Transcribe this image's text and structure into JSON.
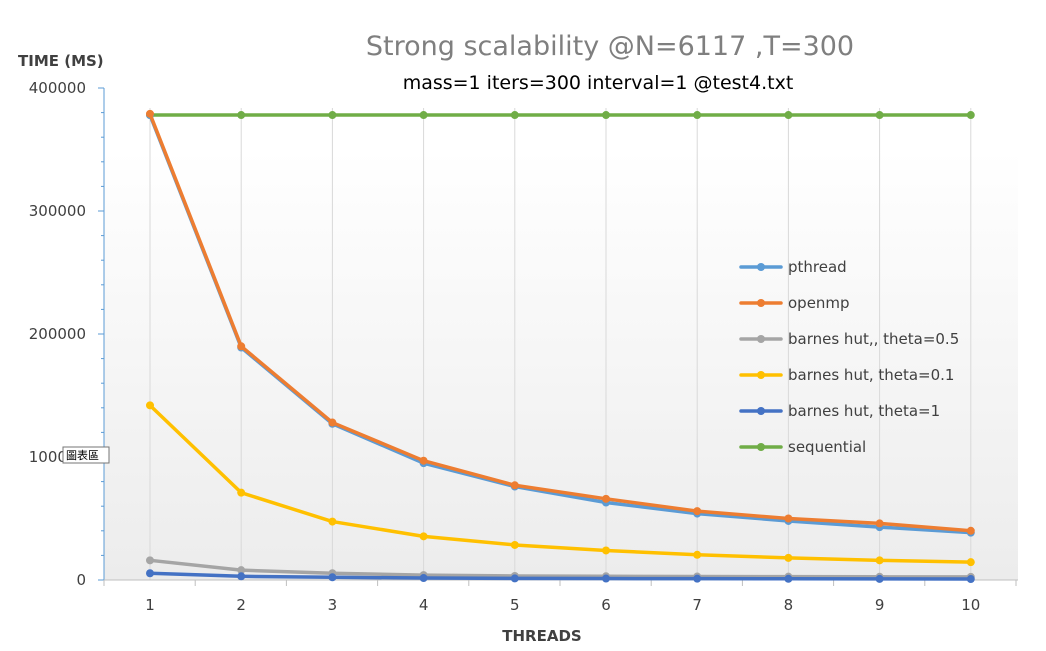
{
  "chart_data": {
    "type": "line",
    "title": "Strong scalability @N=6117 ,T=300",
    "subtitle": "mass=1 iters=300 interval=1 @test4.txt",
    "xlabel": "THREADS",
    "ylabel": "TIME (MS)",
    "ylim": [
      0,
      400000
    ],
    "yticks": [
      {
        "value": 0,
        "label": "0"
      },
      {
        "value": 100000,
        "label": "100000"
      },
      {
        "value": 200000,
        "label": "200000"
      },
      {
        "value": 300000,
        "label": "300000"
      },
      {
        "value": 400000,
        "label": "400000"
      }
    ],
    "categories": [
      "1",
      "2",
      "3",
      "4",
      "5",
      "6",
      "7",
      "8",
      "9",
      "10"
    ],
    "grid": "vertical",
    "legend_position": "right",
    "series": [
      {
        "name": "pthread",
        "color": "#5b9bd5",
        "values": [
          378000,
          189000,
          127000,
          95000,
          76000,
          63000,
          54000,
          48000,
          43000,
          38500
        ]
      },
      {
        "name": "openmp",
        "color": "#ed7d31",
        "values": [
          379000,
          190000,
          128000,
          97000,
          77000,
          66000,
          56000,
          50000,
          46000,
          40000
        ]
      },
      {
        "name": "barnes hut,, theta=0.5",
        "color": "#a5a5a5",
        "values": [
          16000,
          8000,
          5500,
          4000,
          3300,
          3000,
          2800,
          2700,
          2600,
          2500
        ]
      },
      {
        "name": "barnes hut, theta=0.1",
        "color": "#ffc000",
        "values": [
          142000,
          71000,
          47500,
          35500,
          28500,
          24000,
          20500,
          18000,
          16000,
          14500
        ]
      },
      {
        "name": "barnes hut, theta=1",
        "color": "#4472c4",
        "values": [
          5500,
          3000,
          2200,
          1600,
          1300,
          1200,
          1100,
          1000,
          900,
          800
        ]
      },
      {
        "name": "sequential",
        "color": "#70ad47",
        "values": [
          378000,
          378000,
          378000,
          378000,
          378000,
          378000,
          378000,
          378000,
          378000,
          378000
        ]
      }
    ],
    "tooltip": "圖表區"
  }
}
